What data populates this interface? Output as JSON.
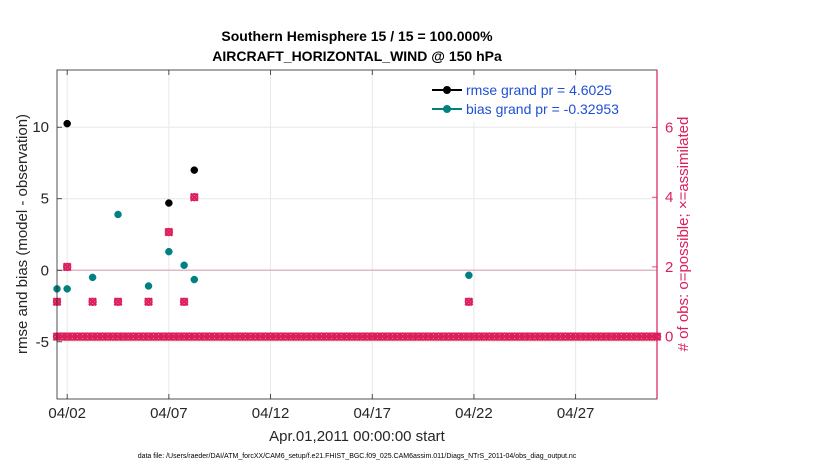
{
  "chart_data": {
    "type": "scatter",
    "title_line1": "Southern Hemisphere 15 / 15 = 100.000%",
    "title_line2": "AIRCRAFT_HORIZONTAL_WIND @ 150 hPa",
    "xlabel": "Apr.01,2011 00:00:00 start",
    "ylabel_left": "rmse and bias (model - observation)",
    "ylabel_right": "# of obs: o=possible; ×=assimilated",
    "footer": "data file: /Users/raeder/DAI/ATM_forcXX/CAM6_setup/f.e21.FHIST_BGC.f09_025.CAM6assim.011/Diags_NTrS_2011-04/obs_diag_output.nc",
    "xlim": [
      1.5,
      31.0
    ],
    "ylim_left": [
      -9,
      14
    ],
    "ylim_right": [
      -1.79,
      7.65
    ],
    "x_ticks": [
      {
        "value": 2,
        "label": "04/02"
      },
      {
        "value": 7,
        "label": "04/07"
      },
      {
        "value": 12,
        "label": "04/12"
      },
      {
        "value": 17,
        "label": "04/17"
      },
      {
        "value": 22,
        "label": "04/22"
      },
      {
        "value": 27,
        "label": "04/27"
      }
    ],
    "y_ticks_left": [
      {
        "value": -5,
        "label": "-5"
      },
      {
        "value": 0,
        "label": "0"
      },
      {
        "value": 5,
        "label": "5"
      },
      {
        "value": 10,
        "label": "10"
      }
    ],
    "y_ticks_right": [
      {
        "value": 0,
        "label": "0"
      },
      {
        "value": 2,
        "label": "2"
      },
      {
        "value": 4,
        "label": "4"
      },
      {
        "value": 6,
        "label": "6"
      }
    ],
    "legend": {
      "location": "top-right",
      "entries": [
        {
          "label": "rmse grand pr = 4.6025",
          "color": "#000000"
        },
        {
          "label": "bias grand pr = -0.32953",
          "color": "#008080"
        }
      ]
    },
    "series": [
      {
        "name": "rmse",
        "axis": "left",
        "color": "#000000",
        "points": [
          [
            2.0,
            10.25
          ],
          [
            7.0,
            4.7
          ],
          [
            8.25,
            7.0
          ]
        ]
      },
      {
        "name": "bias",
        "axis": "left",
        "color": "#008080",
        "points": [
          [
            1.5,
            -1.3
          ],
          [
            2.0,
            -1.3
          ],
          [
            3.25,
            -0.5
          ],
          [
            4.5,
            3.9
          ],
          [
            6.0,
            -1.1
          ],
          [
            7.0,
            1.3
          ],
          [
            7.75,
            0.35
          ],
          [
            8.25,
            -0.65
          ],
          [
            21.75,
            -0.35
          ]
        ]
      },
      {
        "name": "obs_possible",
        "axis": "right",
        "color": "#dc1f5a",
        "points": [
          [
            1.5,
            1
          ],
          [
            2.0,
            2
          ],
          [
            3.25,
            1
          ],
          [
            4.5,
            1
          ],
          [
            6.0,
            1
          ],
          [
            7.0,
            3
          ],
          [
            7.75,
            1
          ],
          [
            8.25,
            4
          ],
          [
            21.75,
            1
          ]
        ]
      },
      {
        "name": "obs_assimilated",
        "axis": "right",
        "color": "#dc1f5a",
        "points": [
          [
            1.5,
            1
          ],
          [
            2.0,
            2
          ],
          [
            3.25,
            1
          ],
          [
            4.5,
            1
          ],
          [
            6.0,
            1
          ],
          [
            7.0,
            3
          ],
          [
            7.75,
            1
          ],
          [
            8.25,
            4
          ],
          [
            21.75,
            1
          ]
        ]
      }
    ],
    "zero_counts": {
      "x_start": 1.5,
      "x_end": 31.0,
      "step": 0.25,
      "value": 0
    },
    "colors": {
      "right_axis": "#dc1f5a",
      "legend_text": "#1f4fd6",
      "grid": "#e8e8e8",
      "zero_line": "#e2b8c4"
    }
  }
}
